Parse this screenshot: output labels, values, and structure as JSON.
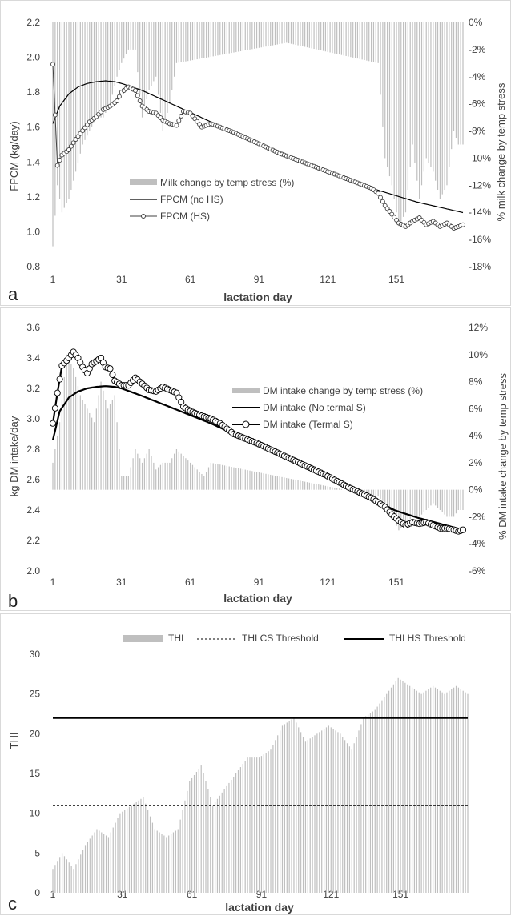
{
  "chart_data": [
    {
      "panel": "a",
      "type": "line",
      "xlabel": "lactation day",
      "ylabel": "FPCM (kg/day)",
      "y2label": "% milk change by temp stress",
      "xticks": [
        "1",
        "31",
        "61",
        "91",
        "121",
        "151"
      ],
      "ylim": [
        0.8,
        2.2
      ],
      "yticks": [
        "0.8",
        "1.0",
        "1.2",
        "1.4",
        "1.6",
        "1.8",
        "2.0",
        "2.2"
      ],
      "y2lim": [
        -18,
        0
      ],
      "y2ticks": [
        "-18%",
        "-16%",
        "-14%",
        "-12%",
        "-10%",
        "-8%",
        "-6%",
        "-4%",
        "-2%",
        "0%"
      ],
      "legend_position": "center",
      "series": [
        {
          "name": "Milk change by temp stress (%)",
          "kind": "bar",
          "axis": "right",
          "color": "#bfbfbf",
          "x": [
            1,
            3,
            5,
            8,
            11,
            14,
            17,
            20,
            23,
            26,
            29,
            31,
            34,
            37,
            40,
            43,
            46,
            49,
            52,
            55,
            103,
            143,
            146,
            149,
            152,
            155,
            158,
            161,
            164,
            167,
            170,
            173,
            176,
            178
          ],
          "values": [
            -16.5,
            -12,
            -14,
            -13,
            -11,
            -9,
            -8,
            -7,
            -7,
            -6,
            -4,
            -3,
            -2,
            -2,
            -7,
            -5,
            -4,
            -8,
            -6,
            -3,
            -1.5,
            -3,
            -10,
            -12,
            -15,
            -14,
            -9,
            -13,
            -10,
            -11,
            -13,
            -12,
            -8,
            -9
          ]
        },
        {
          "name": "FPCM (no HS)",
          "kind": "line",
          "color": "#000000",
          "x": [
            1,
            4,
            8,
            12,
            16,
            20,
            24,
            28,
            31,
            40,
            50,
            60,
            70,
            80,
            90,
            100,
            110,
            120,
            130,
            140,
            150,
            160,
            170,
            180
          ],
          "values": [
            1.62,
            1.72,
            1.79,
            1.83,
            1.85,
            1.86,
            1.865,
            1.86,
            1.85,
            1.81,
            1.75,
            1.69,
            1.63,
            1.57,
            1.51,
            1.45,
            1.4,
            1.35,
            1.3,
            1.25,
            1.21,
            1.17,
            1.14,
            1.11
          ]
        },
        {
          "name": "FPCM (HS)",
          "kind": "line-marker",
          "color": "#404040",
          "x": [
            1,
            3,
            5,
            8,
            11,
            14,
            17,
            20,
            23,
            26,
            29,
            31,
            34,
            37,
            40,
            43,
            46,
            49,
            52,
            55,
            58,
            61,
            66,
            70,
            74,
            80,
            90,
            100,
            110,
            120,
            130,
            140,
            143,
            146,
            149,
            152,
            155,
            158,
            161,
            164,
            167,
            170,
            173,
            176,
            178,
            180
          ],
          "values": [
            1.96,
            1.38,
            1.44,
            1.47,
            1.53,
            1.58,
            1.63,
            1.66,
            1.7,
            1.72,
            1.75,
            1.8,
            1.83,
            1.81,
            1.72,
            1.69,
            1.68,
            1.64,
            1.62,
            1.61,
            1.69,
            1.68,
            1.6,
            1.62,
            1.6,
            1.57,
            1.51,
            1.45,
            1.4,
            1.35,
            1.3,
            1.25,
            1.22,
            1.15,
            1.1,
            1.05,
            1.03,
            1.06,
            1.08,
            1.04,
            1.06,
            1.03,
            1.05,
            1.02,
            1.03,
            1.04
          ]
        }
      ]
    },
    {
      "panel": "b",
      "type": "line",
      "xlabel": "lactation day",
      "ylabel": "kg DM intake/day",
      "y2label": "% DM intake change by temp stress",
      "xticks": [
        "1",
        "31",
        "61",
        "91",
        "121",
        "151"
      ],
      "ylim": [
        2.0,
        3.6
      ],
      "yticks": [
        "2.0",
        "2.2",
        "2.4",
        "2.6",
        "2.8",
        "3.0",
        "3.2",
        "3.4",
        "3.6"
      ],
      "y2lim": [
        -6,
        12
      ],
      "y2ticks": [
        "-6%",
        "-4%",
        "-2%",
        "0%",
        "2%",
        "4%",
        "6%",
        "8%",
        "10%",
        "12%"
      ],
      "legend_position": "center",
      "series": [
        {
          "name": "DM intake change by temp stress (%)",
          "kind": "bar",
          "axis": "right",
          "color": "#bfbfbf",
          "x": [
            1,
            4,
            7,
            10,
            13,
            16,
            19,
            22,
            25,
            28,
            31,
            34,
            37,
            40,
            43,
            46,
            49,
            52,
            55,
            67,
            70,
            143,
            146,
            149,
            152,
            155,
            158,
            161,
            164,
            167,
            170,
            173,
            176,
            178
          ],
          "values": [
            2,
            5,
            10,
            9,
            7,
            6,
            5,
            8,
            6,
            7,
            1,
            1,
            3,
            2,
            3,
            1.5,
            2,
            2,
            3,
            1,
            2,
            -0.5,
            -1,
            -2,
            -3,
            -2.5,
            -2,
            -2,
            -1.5,
            -1,
            -1.5,
            -2,
            -2,
            -1.5
          ]
        },
        {
          "name": "DM intake (No termal S)",
          "kind": "line",
          "color": "#000000",
          "x": [
            1,
            4,
            8,
            12,
            16,
            20,
            24,
            28,
            31,
            40,
            50,
            60,
            70,
            80,
            90,
            100,
            110,
            120,
            130,
            140,
            150,
            160,
            170,
            180
          ],
          "values": [
            2.86,
            3.05,
            3.14,
            3.18,
            3.2,
            3.21,
            3.215,
            3.21,
            3.2,
            3.15,
            3.09,
            3.03,
            2.97,
            2.9,
            2.84,
            2.77,
            2.7,
            2.63,
            2.55,
            2.48,
            2.4,
            2.35,
            2.31,
            2.27
          ]
        },
        {
          "name": "DM intake (Termal S)",
          "kind": "line-marker",
          "color": "#000000",
          "x": [
            1,
            3,
            5,
            8,
            10,
            12,
            14,
            16,
            18,
            20,
            22,
            24,
            26,
            28,
            31,
            34,
            37,
            40,
            43,
            46,
            49,
            52,
            55,
            58,
            61,
            66,
            70,
            74,
            80,
            90,
            100,
            110,
            120,
            130,
            140,
            146,
            149,
            152,
            155,
            158,
            161,
            164,
            167,
            170,
            173,
            176,
            178,
            180
          ],
          "values": [
            2.97,
            3.17,
            3.35,
            3.4,
            3.44,
            3.4,
            3.34,
            3.3,
            3.36,
            3.38,
            3.4,
            3.34,
            3.33,
            3.25,
            3.22,
            3.22,
            3.27,
            3.23,
            3.19,
            3.18,
            3.21,
            3.19,
            3.17,
            3.08,
            3.05,
            3.02,
            3.0,
            2.97,
            2.9,
            2.84,
            2.77,
            2.7,
            2.63,
            2.55,
            2.48,
            2.42,
            2.37,
            2.33,
            2.3,
            2.32,
            2.31,
            2.32,
            2.3,
            2.28,
            2.28,
            2.27,
            2.26,
            2.27
          ]
        }
      ]
    },
    {
      "panel": "c",
      "type": "bar",
      "xlabel": "lactation day",
      "ylabel": "THI",
      "xticks": [
        "1",
        "31",
        "61",
        "91",
        "121",
        "151"
      ],
      "ylim": [
        0,
        30
      ],
      "yticks": [
        "0",
        "5",
        "10",
        "15",
        "20",
        "25",
        "30"
      ],
      "legend_position": "top",
      "series": [
        {
          "name": "THI",
          "kind": "bar",
          "color": "#bfbfbf",
          "x": [
            1,
            5,
            10,
            15,
            20,
            25,
            30,
            35,
            40,
            45,
            50,
            55,
            60,
            65,
            70,
            75,
            80,
            85,
            90,
            95,
            100,
            105,
            110,
            115,
            120,
            125,
            130,
            135,
            140,
            145,
            150,
            155,
            160,
            165,
            170,
            175,
            180
          ],
          "values": [
            3,
            5,
            3,
            6,
            8,
            7,
            10,
            11,
            12,
            8,
            7,
            8,
            14,
            16,
            11,
            13,
            15,
            17,
            17,
            18,
            21,
            22,
            19,
            20,
            21,
            20,
            18,
            22,
            23,
            25,
            27,
            26,
            25,
            26,
            25,
            26,
            25
          ]
        },
        {
          "name": "THI CS Threshold",
          "kind": "hline-dashed",
          "color": "#000000",
          "value": 11
        },
        {
          "name": "THI HS Threshold",
          "kind": "hline",
          "color": "#000000",
          "value": 22
        }
      ]
    }
  ],
  "panels": {
    "a": {
      "letter": "a",
      "ylabel": "FPCM (kg/day)",
      "y2label": "% milk change by temp stress",
      "xlabel": "lactation day",
      "legend": [
        "Milk change by temp stress (%)",
        "FPCM (no HS)",
        "FPCM (HS)"
      ]
    },
    "b": {
      "letter": "b",
      "ylabel": "kg DM intake/day",
      "y2label": "% DM intake change by temp stress",
      "xlabel": "lactation day",
      "legend": [
        "DM intake change by temp stress (%)",
        "DM intake (No termal S)",
        "DM intake (Termal S)"
      ]
    },
    "c": {
      "letter": "c",
      "ylabel": "THI",
      "xlabel": "lactation day",
      "legend": [
        "THI",
        "THI CS Threshold",
        "THI HS Threshold"
      ]
    }
  }
}
